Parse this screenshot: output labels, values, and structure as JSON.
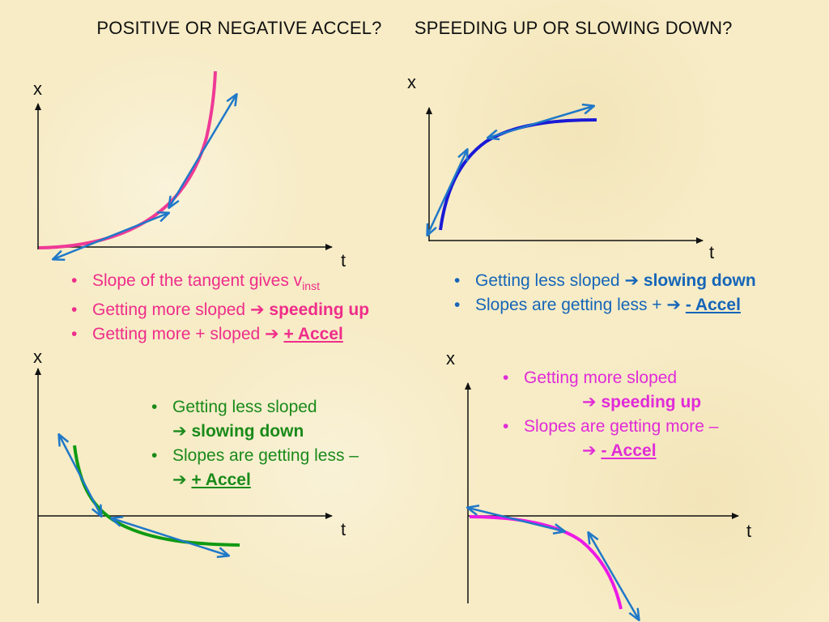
{
  "title": {
    "left": "POSITIVE OR NEGATIVE ACCEL?",
    "right": "SPEEDING UP OR SLOWING DOWN?"
  },
  "axes": {
    "x": "x",
    "t": "t"
  },
  "arrow_glyph": "➔",
  "colors": {
    "axis": "#111111",
    "tangent": "#1f78c8",
    "curve_top_left": "#ef3a96",
    "curve_top_right": "#1a1ad6",
    "curve_bottom_left": "#0f9a12",
    "curve_bottom_right": "#ec1ae6"
  },
  "panels": {
    "top_left": {
      "notes": [
        {
          "text": "Slope of the tangent gives v",
          "sub": "inst"
        },
        {
          "text": "Getting more sloped ",
          "bold": "speeding up"
        },
        {
          "text": "Getting more + sloped ",
          "bold": "+ Accel"
        }
      ]
    },
    "top_right": {
      "notes": [
        {
          "text": "Getting less sloped ",
          "bold": "slowing down"
        },
        {
          "text": "Slopes are getting less + ",
          "bold": "- Accel"
        }
      ]
    },
    "bottom_left": {
      "notes": [
        {
          "text": "Getting less sloped",
          "bold": "slowing down"
        },
        {
          "text": "Slopes are getting less –",
          "bold": "+ Accel"
        }
      ]
    },
    "bottom_right": {
      "notes": [
        {
          "text": "Getting more sloped",
          "bold": "speeding up"
        },
        {
          "text": "Slopes are getting more –",
          "bold": "- Accel"
        }
      ]
    }
  }
}
